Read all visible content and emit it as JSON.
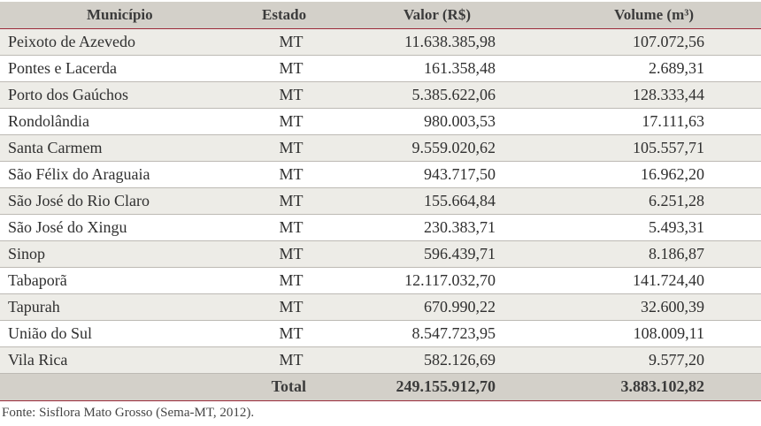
{
  "table": {
    "headers": {
      "municipio": "Município",
      "estado": "Estado",
      "valor": "Valor (R$)",
      "volume": "Volume (m³)"
    },
    "rows": [
      {
        "municipio": "Peixoto de Azevedo",
        "estado": "MT",
        "valor": "11.638.385,98",
        "volume": "107.072,56"
      },
      {
        "municipio": "Pontes e Lacerda",
        "estado": "MT",
        "valor": "161.358,48",
        "volume": "2.689,31"
      },
      {
        "municipio": "Porto dos Gaúchos",
        "estado": "MT",
        "valor": "5.385.622,06",
        "volume": "128.333,44"
      },
      {
        "municipio": "Rondolândia",
        "estado": "MT",
        "valor": "980.003,53",
        "volume": "17.111,63"
      },
      {
        "municipio": "Santa Carmem",
        "estado": "MT",
        "valor": "9.559.020,62",
        "volume": "105.557,71"
      },
      {
        "municipio": "São Félix do Araguaia",
        "estado": "MT",
        "valor": "943.717,50",
        "volume": "16.962,20"
      },
      {
        "municipio": "São José do Rio Claro",
        "estado": "MT",
        "valor": "155.664,84",
        "volume": "6.251,28"
      },
      {
        "municipio": "São José do Xingu",
        "estado": "MT",
        "valor": "230.383,71",
        "volume": "5.493,31"
      },
      {
        "municipio": "Sinop",
        "estado": "MT",
        "valor": "596.439,71",
        "volume": "8.186,87"
      },
      {
        "municipio": "Tabaporã",
        "estado": "MT",
        "valor": "12.117.032,70",
        "volume": "141.724,40"
      },
      {
        "municipio": "Tapurah",
        "estado": "MT",
        "valor": "670.990,22",
        "volume": "32.600,39"
      },
      {
        "municipio": "União do Sul",
        "estado": "MT",
        "valor": "8.547.723,95",
        "volume": "108.009,11"
      },
      {
        "municipio": "Vila Rica",
        "estado": "MT",
        "valor": "582.126,69",
        "volume": "9.577,20"
      }
    ],
    "total": {
      "label": "Total",
      "valor": "249.155.912,70",
      "volume": "3.883.102,82"
    }
  },
  "source": "Fonte: Sisflora Mato Grosso (Sema-MT, 2012)."
}
